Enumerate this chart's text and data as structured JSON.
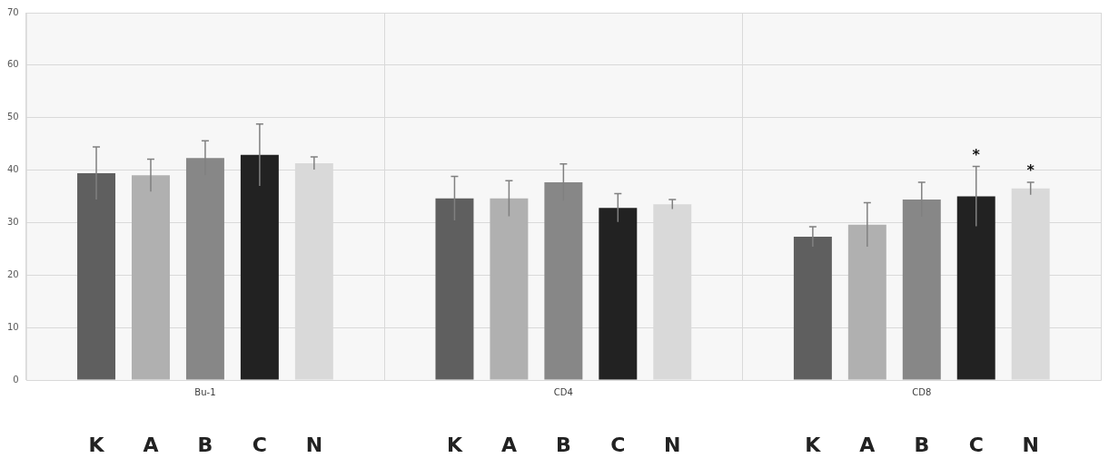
{
  "chart_data": {
    "type": "bar",
    "categories": [
      "Bu-1",
      "CD4",
      "CD8"
    ],
    "series": [
      {
        "name": "K",
        "color": "#5f5f5f",
        "values": [
          39.4,
          34.6,
          27.3
        ],
        "errors": [
          5.0,
          4.2,
          1.9
        ]
      },
      {
        "name": "A",
        "color": "#b0b0b0",
        "values": [
          39.0,
          34.6,
          29.6
        ],
        "errors": [
          3.1,
          3.4,
          4.2
        ]
      },
      {
        "name": "B",
        "color": "#878787",
        "values": [
          42.3,
          37.7,
          34.4
        ],
        "errors": [
          3.3,
          3.5,
          3.3
        ]
      },
      {
        "name": "C",
        "color": "#222222",
        "values": [
          42.9,
          32.8,
          35.0
        ],
        "errors": [
          5.9,
          2.7,
          5.7
        ]
      },
      {
        "name": "N",
        "color": "#d9d9d9",
        "values": [
          41.3,
          33.5,
          36.5
        ],
        "errors": [
          1.2,
          0.9,
          1.2
        ]
      }
    ],
    "ylim": [
      0,
      70
    ],
    "yticks": [
      0,
      10,
      20,
      30,
      40,
      50,
      60,
      70
    ],
    "grid": true,
    "legend": false,
    "annotations": [
      "*",
      "*"
    ]
  }
}
